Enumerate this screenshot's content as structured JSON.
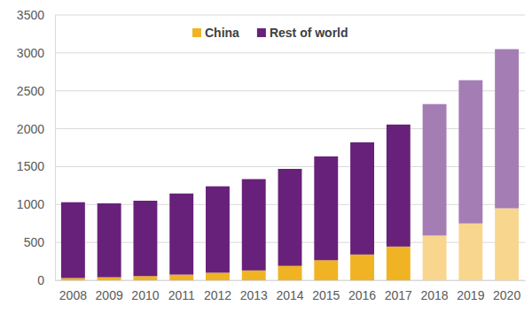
{
  "chart_data": {
    "type": "bar",
    "stacked": true,
    "categories": [
      "2008",
      "2009",
      "2010",
      "2011",
      "2012",
      "2013",
      "2014",
      "2015",
      "2016",
      "2017",
      "2018",
      "2019",
      "2020"
    ],
    "series": [
      {
        "name": "China",
        "colors": [
          "#F0B323",
          "#F0B323",
          "#F0B323",
          "#F0B323",
          "#F0B323",
          "#F0B323",
          "#F0B323",
          "#F0B323",
          "#F0B323",
          "#F0B323",
          "#F8D68E",
          "#F8D68E",
          "#F8D68E"
        ],
        "values": [
          30,
          40,
          55,
          75,
          100,
          130,
          190,
          265,
          340,
          445,
          590,
          750,
          950
        ]
      },
      {
        "name": "Rest of world",
        "colors": [
          "#68217A",
          "#68217A",
          "#68217A",
          "#68217A",
          "#68217A",
          "#68217A",
          "#68217A",
          "#68217A",
          "#68217A",
          "#68217A",
          "#A57DB5",
          "#A57DB5",
          "#A57DB5"
        ],
        "values": [
          1000,
          975,
          995,
          1070,
          1140,
          1205,
          1280,
          1370,
          1480,
          1610,
          1735,
          1890,
          2100
        ]
      }
    ],
    "ylim": [
      0,
      3500
    ],
    "yticks": [
      0,
      500,
      1000,
      1500,
      2000,
      2500,
      3000,
      3500
    ],
    "grid": true,
    "legend": "top"
  }
}
